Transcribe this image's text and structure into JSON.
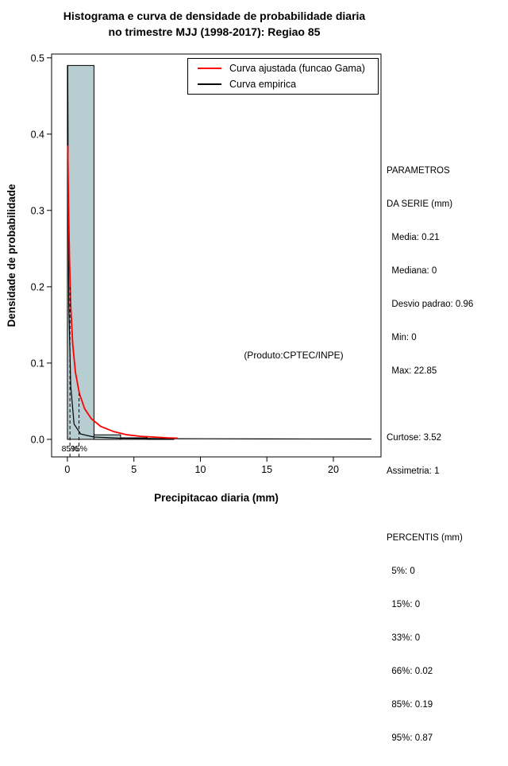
{
  "title": {
    "line1": "Histograma e curva de densidade de probabilidade diaria",
    "line2": "no trimestre MJJ (1998-2017): Regiao 85"
  },
  "legend": [
    {
      "label": "Curva ajustada (funcao Gama)",
      "color": "#ff0000"
    },
    {
      "label": "Curva empirica",
      "color": "#000000"
    }
  ],
  "annotation": "(Produto:CPTEC/INPE)",
  "side_panel": {
    "lines": [
      "PARAMETROS",
      "DA SERIE (mm)",
      "  Media: 0.21",
      "  Mediana: 0",
      "  Desvio padrao: 0.96",
      "  Min: 0",
      "  Max: 22.85",
      "",
      "Curtose: 3.52",
      "Assimetria: 1",
      "",
      "PERCENTIS (mm)",
      "  5%: 0",
      "  15%: 0",
      "  33%: 0",
      "  66%: 0.02",
      "  85%: 0.19",
      "  95%: 0.87"
    ]
  },
  "chart_data": {
    "type": "bar",
    "subtype": "histogram-with-density-curves",
    "title": "Histograma e curva de densidade de probabilidade diaria no trimestre MJJ (1998-2017): Regiao 85",
    "xlabel": "Precipitacao diaria (mm)",
    "ylabel": "Densidade de probabilidade",
    "xlim": [
      -1.19,
      23.58
    ],
    "ylim": [
      -0.023,
      0.505
    ],
    "x_ticks": [
      0,
      5,
      10,
      15,
      20
    ],
    "x_tick_labels": [
      "0",
      "5",
      "10",
      "15",
      "20"
    ],
    "y_ticks": [
      0,
      0.1,
      0.2,
      0.3,
      0.4,
      0.5
    ],
    "y_tick_labels": [
      "0.0",
      "0.1",
      "0.2",
      "0.3",
      "0.4",
      "0.5"
    ],
    "grid": false,
    "legend_position": "top-right-inside",
    "bar_fill": "#b7cdd2",
    "bar_stroke": "#000000",
    "histogram_bins": [
      {
        "x0": 0,
        "x1": 2,
        "density": 0.49
      },
      {
        "x0": 2,
        "x1": 4,
        "density": 0.006
      },
      {
        "x0": 4,
        "x1": 6,
        "density": 0.002
      },
      {
        "x0": 6,
        "x1": 8,
        "density": 0.001
      }
    ],
    "series": [
      {
        "name": "Curva ajustada (funcao Gama)",
        "color": "#ff0000",
        "points": [
          [
            0.03,
            0.385
          ],
          [
            0.08,
            0.31
          ],
          [
            0.15,
            0.24
          ],
          [
            0.25,
            0.175
          ],
          [
            0.4,
            0.125
          ],
          [
            0.6,
            0.088
          ],
          [
            0.9,
            0.06
          ],
          [
            1.3,
            0.04
          ],
          [
            1.8,
            0.027
          ],
          [
            2.5,
            0.017
          ],
          [
            3.5,
            0.01
          ],
          [
            4.5,
            0.006
          ],
          [
            5.5,
            0.004
          ],
          [
            6.5,
            0.003
          ],
          [
            7.5,
            0.002
          ],
          [
            8.3,
            0.0015
          ]
        ]
      },
      {
        "name": "Curva empirica",
        "color": "#000000",
        "points": [
          [
            0.02,
            0.49
          ],
          [
            0.1,
            0.18
          ],
          [
            0.25,
            0.07
          ],
          [
            0.5,
            0.02
          ],
          [
            1,
            0.007
          ],
          [
            2,
            0.003
          ],
          [
            4,
            0.0015
          ],
          [
            8,
            0.0008
          ],
          [
            15,
            0.0005
          ],
          [
            22.85,
            0.0004
          ]
        ]
      }
    ],
    "percentile_markers": [
      {
        "label": "85%",
        "x": 0.19,
        "top": 0.2
      },
      {
        "label": "95%",
        "x": 0.87,
        "top": 0.06
      }
    ],
    "stats_annotation": {
      "media": 0.21,
      "mediana": 0,
      "desvio_padrao": 0.96,
      "min": 0,
      "max": 22.85,
      "curtose": 3.52,
      "assimetria": 1,
      "percentis": {
        "5%": 0,
        "15%": 0,
        "33%": 0,
        "66%": 0.02,
        "85%": 0.19,
        "95%": 0.87
      }
    }
  }
}
